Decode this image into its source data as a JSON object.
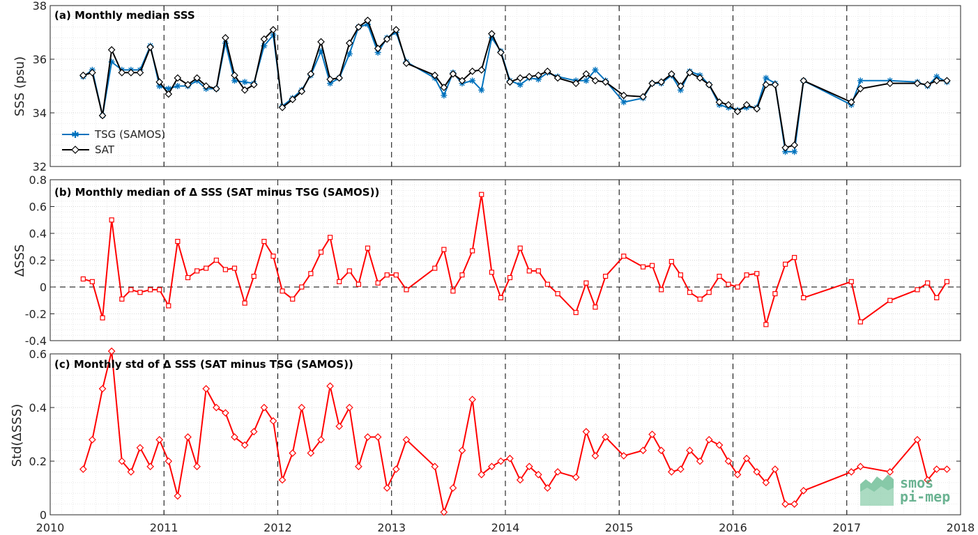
{
  "colors": {
    "tsg": "#0072bd",
    "sat": "#000000",
    "delta": "#ff0000",
    "watermark": "#3a9a6e"
  },
  "watermark": {
    "line1": "smos",
    "line2": "pi-mep"
  },
  "chart_data": [
    {
      "type": "line",
      "title": "(a) Monthly median SSS",
      "ylabel": "SSS (psu)",
      "xlim": [
        2010,
        2018
      ],
      "ylim": [
        32,
        38
      ],
      "yticks": [
        32,
        34,
        36,
        38
      ],
      "xticks": [
        2010,
        2011,
        2012,
        2013,
        2014,
        2015,
        2016,
        2017,
        2018
      ],
      "grid": true,
      "legend": "bottom-left",
      "series": [
        {
          "name": "TSG (SAMOS)",
          "marker": "star",
          "x": [
            2010.29,
            2010.37,
            2010.46,
            2010.54,
            2010.63,
            2010.71,
            2010.79,
            2010.88,
            2010.96,
            2011.04,
            2011.12,
            2011.21,
            2011.29,
            2011.37,
            2011.46,
            2011.54,
            2011.62,
            2011.71,
            2011.79,
            2011.88,
            2011.96,
            2012.04,
            2012.13,
            2012.21,
            2012.29,
            2012.38,
            2012.46,
            2012.54,
            2012.63,
            2012.71,
            2012.79,
            2012.88,
            2012.96,
            2013.04,
            2013.13,
            2013.38,
            2013.46,
            2013.54,
            2013.62,
            2013.71,
            2013.79,
            2013.88,
            2013.96,
            2014.04,
            2014.13,
            2014.21,
            2014.29,
            2014.37,
            2014.46,
            2014.62,
            2014.71,
            2014.79,
            2014.88,
            2015.04,
            2015.21,
            2015.29,
            2015.37,
            2015.46,
            2015.54,
            2015.62,
            2015.71,
            2015.79,
            2015.88,
            2015.96,
            2016.04,
            2016.12,
            2016.21,
            2016.29,
            2016.37,
            2016.46,
            2016.54,
            2016.62,
            2017.04,
            2017.12,
            2017.38,
            2017.62,
            2017.71,
            2017.79,
            2017.88
          ],
          "values": [
            35.35,
            35.6,
            33.9,
            35.9,
            35.6,
            35.6,
            35.6,
            36.5,
            35.0,
            34.9,
            35.0,
            35.0,
            35.2,
            34.9,
            34.9,
            36.6,
            35.2,
            35.15,
            35.1,
            36.5,
            36.9,
            34.25,
            34.55,
            34.85,
            35.4,
            36.3,
            35.1,
            35.3,
            36.2,
            37.2,
            37.3,
            36.25,
            36.8,
            37.0,
            35.9,
            35.3,
            34.65,
            35.5,
            35.1,
            35.2,
            34.85,
            36.8,
            36.3,
            35.2,
            35.05,
            35.3,
            35.25,
            35.5,
            35.35,
            35.2,
            35.2,
            35.6,
            35.2,
            34.4,
            34.55,
            35.1,
            35.1,
            35.4,
            34.85,
            35.55,
            35.4,
            35.05,
            34.3,
            34.2,
            34.1,
            34.2,
            34.2,
            35.3,
            35.1,
            32.55,
            32.55,
            35.2,
            34.3,
            35.2,
            35.2,
            35.15,
            35.0,
            35.35,
            35.15
          ]
        },
        {
          "name": "SAT",
          "marker": "diamond",
          "x": [
            2010.29,
            2010.37,
            2010.46,
            2010.54,
            2010.63,
            2010.71,
            2010.79,
            2010.88,
            2010.96,
            2011.04,
            2011.12,
            2011.21,
            2011.29,
            2011.37,
            2011.46,
            2011.54,
            2011.62,
            2011.71,
            2011.79,
            2011.88,
            2011.96,
            2012.04,
            2012.13,
            2012.21,
            2012.29,
            2012.38,
            2012.46,
            2012.54,
            2012.63,
            2012.71,
            2012.79,
            2012.88,
            2012.96,
            2013.04,
            2013.13,
            2013.38,
            2013.46,
            2013.54,
            2013.62,
            2013.71,
            2013.79,
            2013.88,
            2013.96,
            2014.04,
            2014.13,
            2014.21,
            2014.29,
            2014.37,
            2014.46,
            2014.62,
            2014.71,
            2014.79,
            2014.88,
            2015.04,
            2015.21,
            2015.29,
            2015.37,
            2015.46,
            2015.54,
            2015.62,
            2015.71,
            2015.79,
            2015.88,
            2015.96,
            2016.04,
            2016.12,
            2016.21,
            2016.29,
            2016.37,
            2016.46,
            2016.54,
            2016.62,
            2017.04,
            2017.12,
            2017.38,
            2017.62,
            2017.71,
            2017.79,
            2017.88
          ],
          "values": [
            35.4,
            35.5,
            33.9,
            36.35,
            35.5,
            35.5,
            35.5,
            36.45,
            35.15,
            34.7,
            35.3,
            35.05,
            35.3,
            35.0,
            34.9,
            36.8,
            35.4,
            34.85,
            35.05,
            36.75,
            37.1,
            34.2,
            34.5,
            34.8,
            35.45,
            36.65,
            35.25,
            35.3,
            36.6,
            37.2,
            37.45,
            36.4,
            36.75,
            37.1,
            35.85,
            35.4,
            34.95,
            35.45,
            35.2,
            35.55,
            35.6,
            36.95,
            36.25,
            35.15,
            35.3,
            35.35,
            35.4,
            35.55,
            35.3,
            35.1,
            35.45,
            35.2,
            35.15,
            34.65,
            34.6,
            35.1,
            35.15,
            35.45,
            35.0,
            35.5,
            35.3,
            35.05,
            34.4,
            34.3,
            34.05,
            34.3,
            34.15,
            35.05,
            35.05,
            32.7,
            32.8,
            35.2,
            34.4,
            34.9,
            35.1,
            35.1,
            35.05,
            35.2,
            35.2
          ]
        }
      ]
    },
    {
      "type": "line",
      "title": "(b) Monthly median of Δ SSS (SAT minus TSG (SAMOS))",
      "ylabel": "ΔSSS",
      "xlim": [
        2010,
        2018
      ],
      "ylim": [
        -0.4,
        0.8
      ],
      "yticks": [
        -0.4,
        -0.2,
        0,
        0.2,
        0.4,
        0.6,
        0.8
      ],
      "xticks": [
        2010,
        2011,
        2012,
        2013,
        2014,
        2015,
        2016,
        2017,
        2018
      ],
      "grid": true,
      "series": [
        {
          "marker": "square",
          "x": [
            2010.29,
            2010.37,
            2010.46,
            2010.54,
            2010.63,
            2010.71,
            2010.79,
            2010.88,
            2010.96,
            2011.04,
            2011.12,
            2011.21,
            2011.29,
            2011.37,
            2011.46,
            2011.54,
            2011.62,
            2011.71,
            2011.79,
            2011.88,
            2011.96,
            2012.04,
            2012.13,
            2012.21,
            2012.29,
            2012.38,
            2012.46,
            2012.54,
            2012.63,
            2012.71,
            2012.79,
            2012.88,
            2012.96,
            2013.04,
            2013.13,
            2013.38,
            2013.46,
            2013.54,
            2013.62,
            2013.71,
            2013.79,
            2013.88,
            2013.96,
            2014.04,
            2014.13,
            2014.21,
            2014.29,
            2014.37,
            2014.46,
            2014.62,
            2014.71,
            2014.79,
            2014.88,
            2015.04,
            2015.21,
            2015.29,
            2015.37,
            2015.46,
            2015.54,
            2015.62,
            2015.71,
            2015.79,
            2015.88,
            2015.96,
            2016.04,
            2016.12,
            2016.21,
            2016.29,
            2016.37,
            2016.46,
            2016.54,
            2016.62,
            2017.04,
            2017.12,
            2017.38,
            2017.62,
            2017.71,
            2017.79,
            2017.88
          ],
          "values": [
            0.06,
            0.04,
            -0.23,
            0.5,
            -0.09,
            -0.02,
            -0.04,
            -0.02,
            -0.02,
            -0.14,
            0.34,
            0.07,
            0.12,
            0.14,
            0.2,
            0.13,
            0.14,
            -0.12,
            0.08,
            0.34,
            0.23,
            -0.03,
            -0.09,
            0.0,
            0.1,
            0.26,
            0.37,
            0.04,
            0.12,
            0.02,
            0.29,
            0.03,
            0.09,
            0.09,
            -0.02,
            0.14,
            0.28,
            -0.03,
            0.09,
            0.27,
            0.69,
            0.11,
            -0.08,
            0.07,
            0.29,
            0.12,
            0.12,
            0.02,
            -0.05,
            -0.19,
            0.03,
            -0.15,
            0.08,
            0.23,
            0.15,
            0.16,
            -0.02,
            0.19,
            0.09,
            -0.04,
            -0.09,
            -0.04,
            0.08,
            0.02,
            0.0,
            0.09,
            0.1,
            -0.28,
            -0.05,
            0.17,
            0.22,
            -0.08,
            0.04,
            -0.26,
            -0.1,
            -0.02,
            0.03,
            -0.08,
            0.04
          ]
        }
      ]
    },
    {
      "type": "line",
      "title": "(c) Monthly std of Δ SSS (SAT minus TSG (SAMOS))",
      "ylabel": "Std(ΔSSS)",
      "xlim": [
        2010,
        2018
      ],
      "ylim": [
        0,
        0.6
      ],
      "yticks": [
        0,
        0.2,
        0.4,
        0.6
      ],
      "xticks": [
        2010,
        2011,
        2012,
        2013,
        2014,
        2015,
        2016,
        2017,
        2018
      ],
      "xticklabels": [
        "2010",
        "2011",
        "2012",
        "2013",
        "2014",
        "2015",
        "2016",
        "2017",
        "2018"
      ],
      "grid": true,
      "series": [
        {
          "marker": "diamond",
          "x": [
            2010.29,
            2010.37,
            2010.46,
            2010.54,
            2010.63,
            2010.71,
            2010.79,
            2010.88,
            2010.96,
            2011.04,
            2011.12,
            2011.21,
            2011.29,
            2011.37,
            2011.46,
            2011.54,
            2011.62,
            2011.71,
            2011.79,
            2011.88,
            2011.96,
            2012.04,
            2012.13,
            2012.21,
            2012.29,
            2012.38,
            2012.46,
            2012.54,
            2012.63,
            2012.71,
            2012.79,
            2012.88,
            2012.96,
            2013.04,
            2013.13,
            2013.38,
            2013.46,
            2013.54,
            2013.62,
            2013.71,
            2013.79,
            2013.88,
            2013.96,
            2014.04,
            2014.13,
            2014.21,
            2014.29,
            2014.37,
            2014.46,
            2014.62,
            2014.71,
            2014.79,
            2014.88,
            2015.04,
            2015.21,
            2015.29,
            2015.37,
            2015.46,
            2015.54,
            2015.62,
            2015.71,
            2015.79,
            2015.88,
            2015.96,
            2016.04,
            2016.12,
            2016.21,
            2016.29,
            2016.37,
            2016.46,
            2016.54,
            2016.62,
            2017.04,
            2017.12,
            2017.38,
            2017.62,
            2017.71,
            2017.79,
            2017.88
          ],
          "values": [
            0.17,
            0.28,
            0.47,
            0.61,
            0.2,
            0.16,
            0.25,
            0.18,
            0.28,
            0.2,
            0.07,
            0.29,
            0.18,
            0.47,
            0.4,
            0.38,
            0.29,
            0.26,
            0.31,
            0.4,
            0.35,
            0.13,
            0.23,
            0.4,
            0.23,
            0.28,
            0.48,
            0.33,
            0.4,
            0.18,
            0.29,
            0.29,
            0.1,
            0.17,
            0.28,
            0.18,
            0.01,
            0.1,
            0.24,
            0.43,
            0.15,
            0.18,
            0.2,
            0.21,
            0.13,
            0.18,
            0.15,
            0.1,
            0.16,
            0.14,
            0.31,
            0.22,
            0.29,
            0.22,
            0.24,
            0.3,
            0.24,
            0.16,
            0.17,
            0.24,
            0.2,
            0.28,
            0.26,
            0.2,
            0.15,
            0.21,
            0.16,
            0.12,
            0.17,
            0.04,
            0.04,
            0.09,
            0.16,
            0.18,
            0.16,
            0.28,
            0.13,
            0.17,
            0.17
          ]
        }
      ]
    }
  ]
}
